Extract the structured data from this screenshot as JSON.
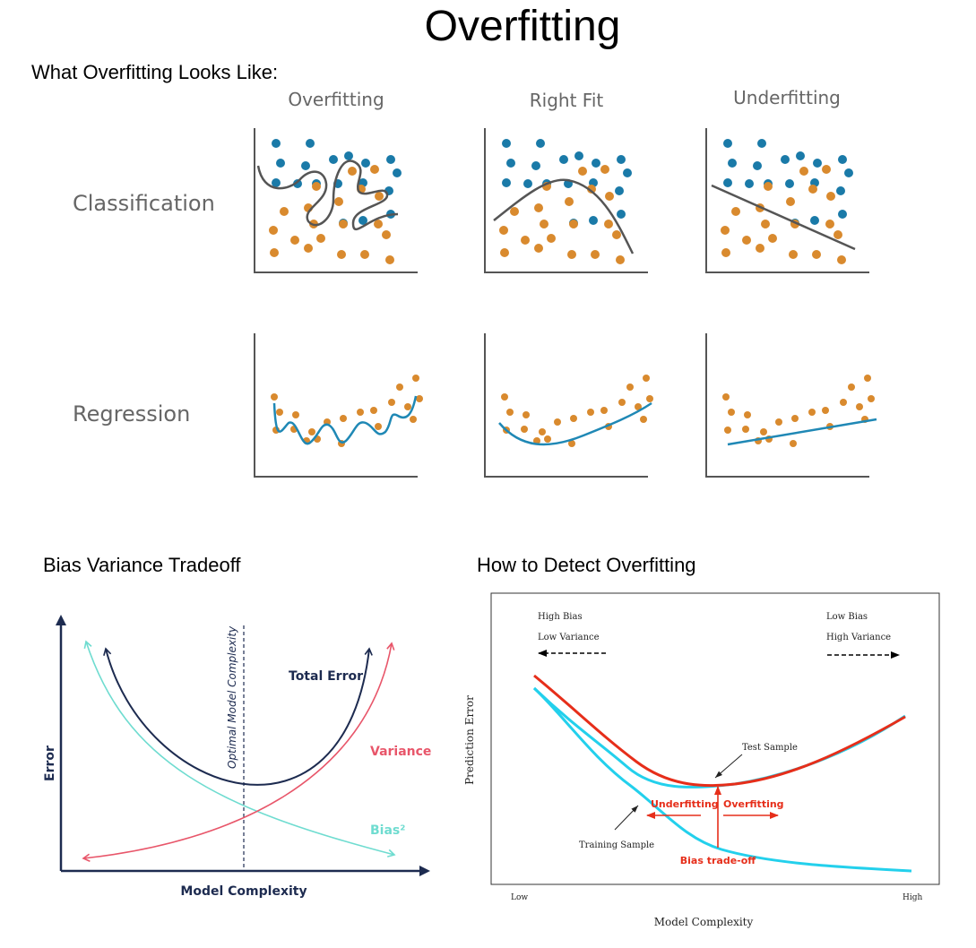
{
  "title": "Overfitting",
  "sections": {
    "looks_like": "What Overfitting Looks Like:",
    "bias_variance": "Bias Variance Tradeoff",
    "detect": "How to Detect Overfitting"
  },
  "fit_grid": {
    "columns": [
      "Overfitting",
      "Right Fit",
      "Underfitting"
    ],
    "rows": [
      "Classification",
      "Regression"
    ]
  },
  "bias_variance_chart": {
    "x_label": "Model Complexity",
    "y_label": "Error",
    "optimal_label": "Optimal Model Complexity",
    "curves": {
      "total_error": "Total Error",
      "variance": "Variance",
      "bias": "Bias²"
    }
  },
  "detect_chart": {
    "top_left_line1": "High Bias",
    "top_left_line2": "Low Variance",
    "top_right_line1": "Low Bias",
    "top_right_line2": "High Variance",
    "y_label": "Prediction Error",
    "x_label": "Model Complexity",
    "x_low": "Low",
    "x_high": "High",
    "test_sample": "Test Sample",
    "training_sample": "Training Sample",
    "underfitting": "Underfitting",
    "overfitting": "Overfitting",
    "bias_tradeoff": "Bias trade-off"
  },
  "colors": {
    "blue_point": "#1a7aa8",
    "orange_point": "#d98a2e",
    "curve_gray": "#555555",
    "regression_line": "#1f88b5",
    "total_error": "#1d2b50",
    "variance": "#e8566a",
    "bias": "#6fdcd0",
    "test_curve": "#e62e1a",
    "training_curve": "#23d0ec"
  }
}
